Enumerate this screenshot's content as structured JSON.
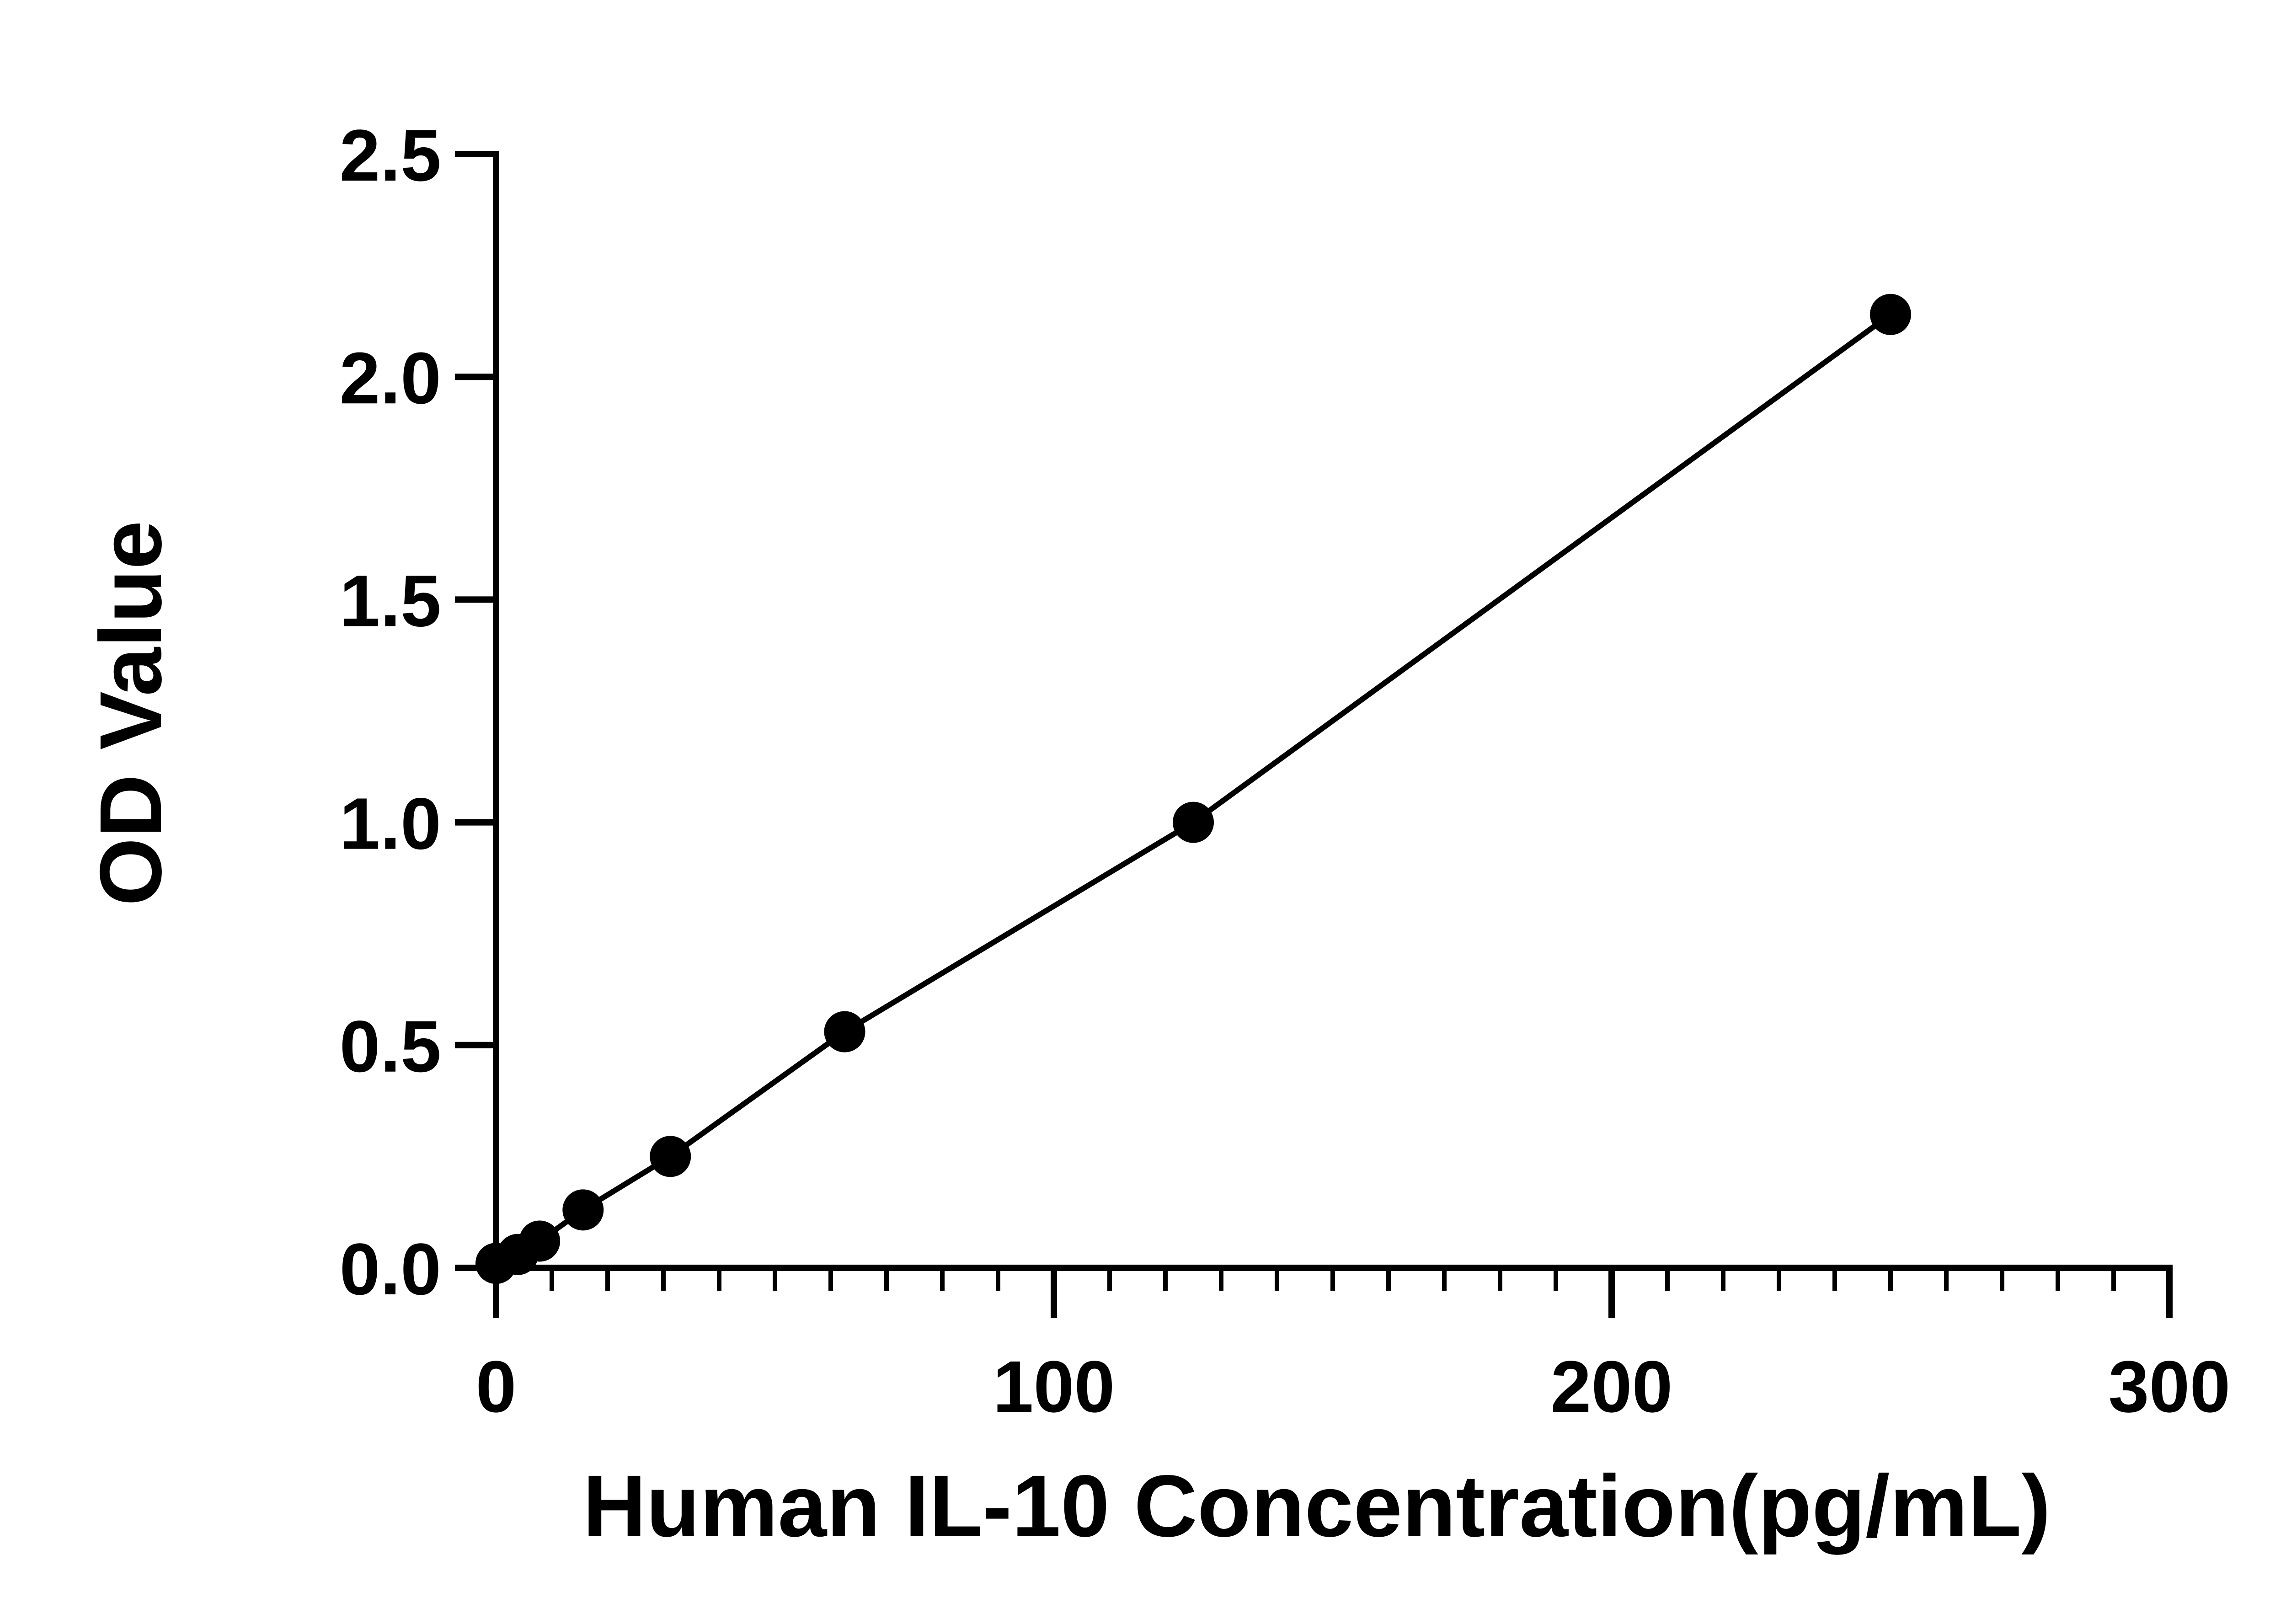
{
  "chart_data": {
    "type": "scatter",
    "title": "",
    "xlabel": "Human IL-10 Concentration(pg/mL)",
    "ylabel": "OD Value",
    "xlim": [
      0,
      300
    ],
    "ylim": [
      0,
      2.5
    ],
    "x_ticks": [
      0,
      100,
      200,
      300
    ],
    "y_ticks": [
      0.0,
      0.5,
      1.0,
      1.5,
      2.0,
      2.5
    ],
    "x_tick_labels": [
      "0",
      "100",
      "200",
      "300"
    ],
    "y_tick_labels": [
      "0.0",
      "0.5",
      "1.0",
      "1.5",
      "2.0",
      "2.5"
    ],
    "x_minor_step": 10,
    "grid": false,
    "legend": "none",
    "series": [
      {
        "x": [
          0,
          3.9,
          7.8,
          15.6,
          31.25,
          62.5,
          125,
          250
        ],
        "y": [
          0.01,
          0.03,
          0.06,
          0.13,
          0.25,
          0.53,
          1.0,
          2.14
        ],
        "fit_line": true,
        "marker": "filled-circle",
        "color": "#000000"
      }
    ]
  }
}
